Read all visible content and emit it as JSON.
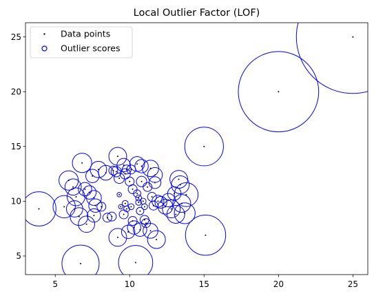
{
  "chart_data": {
    "type": "scatter",
    "title": "Local Outlier Factor (LOF)",
    "xlabel": "",
    "ylabel": "",
    "xlim": [
      3,
      26
    ],
    "ylim": [
      3.3,
      26.3
    ],
    "x_ticks": [
      5,
      10,
      15,
      20,
      25
    ],
    "y_ticks": [
      5,
      10,
      15,
      20,
      25
    ],
    "grid": false,
    "legend_position": "top-left",
    "colors": {
      "points": "#000000",
      "circles": "#0000ff",
      "axes": "#000000"
    },
    "series": [
      {
        "name": "Data points",
        "marker": "dot",
        "points": [
          [
            3.9,
            9.3
          ],
          [
            5.6,
            9.5
          ],
          [
            5.9,
            11.9
          ],
          [
            6.2,
            11.3
          ],
          [
            6.4,
            10.4
          ],
          [
            6.3,
            9.3
          ],
          [
            6.6,
            8.6
          ],
          [
            6.7,
            4.3
          ],
          [
            6.8,
            13.5
          ],
          [
            7.0,
            11.1
          ],
          [
            7.1,
            7.9
          ],
          [
            7.3,
            10.8
          ],
          [
            7.5,
            12.3
          ],
          [
            7.6,
            10.3
          ],
          [
            7.7,
            9.6
          ],
          [
            7.6,
            8.7
          ],
          [
            7.9,
            12.9
          ],
          [
            8.1,
            9.5
          ],
          [
            8.4,
            12.6
          ],
          [
            8.5,
            8.5
          ],
          [
            8.8,
            8.6
          ],
          [
            8.9,
            12.8
          ],
          [
            9.1,
            12.7
          ],
          [
            9.2,
            14.1
          ],
          [
            9.3,
            12.1
          ],
          [
            9.3,
            10.6
          ],
          [
            9.2,
            6.7
          ],
          [
            9.4,
            9.5
          ],
          [
            9.6,
            13.3
          ],
          [
            9.7,
            12.5
          ],
          [
            9.7,
            9.8
          ],
          [
            9.8,
            12.9
          ],
          [
            9.8,
            9.3
          ],
          [
            9.9,
            7.2
          ],
          [
            9.6,
            8.8
          ],
          [
            10.0,
            11.8
          ],
          [
            10.1,
            12.9
          ],
          [
            10.2,
            11.1
          ],
          [
            10.1,
            9.5
          ],
          [
            10.2,
            8.2
          ],
          [
            10.3,
            7.6
          ],
          [
            10.4,
            4.4
          ],
          [
            10.5,
            13.4
          ],
          [
            10.5,
            10.7
          ],
          [
            10.6,
            10.3
          ],
          [
            10.6,
            9.9
          ],
          [
            10.7,
            9.1
          ],
          [
            10.7,
            7.4
          ],
          [
            10.8,
            11.8
          ],
          [
            10.8,
            13.2
          ],
          [
            10.9,
            10.0
          ],
          [
            11.0,
            9.5
          ],
          [
            11.0,
            8.3
          ],
          [
            11.1,
            8.0
          ],
          [
            11.2,
            11.3
          ],
          [
            11.4,
            13.0
          ],
          [
            11.4,
            7.3
          ],
          [
            11.5,
            10.4
          ],
          [
            11.6,
            9.6
          ],
          [
            11.7,
            11.7
          ],
          [
            11.7,
            12.4
          ],
          [
            11.8,
            6.5
          ],
          [
            11.9,
            10.0
          ],
          [
            12.1,
            9.9
          ],
          [
            12.4,
            9.5
          ],
          [
            12.6,
            10.1
          ],
          [
            12.8,
            9.3
          ],
          [
            13.0,
            10.7
          ],
          [
            13.1,
            8.8
          ],
          [
            13.3,
            12.0
          ],
          [
            13.4,
            11.5
          ],
          [
            13.5,
            9.8
          ],
          [
            13.7,
            8.9
          ],
          [
            13.8,
            10.6
          ],
          [
            15.0,
            15.0
          ],
          [
            15.1,
            6.9
          ],
          [
            20.0,
            20.0
          ],
          [
            25.0,
            25.0
          ]
        ]
      },
      {
        "name": "Outlier scores",
        "marker": "circle",
        "points": [
          [
            3.9,
            9.3,
            1.15
          ],
          [
            5.6,
            9.5,
            0.75
          ],
          [
            5.9,
            11.9,
            0.65
          ],
          [
            6.2,
            11.3,
            0.55
          ],
          [
            6.4,
            10.4,
            0.6
          ],
          [
            6.3,
            9.3,
            0.55
          ],
          [
            6.6,
            8.6,
            0.6
          ],
          [
            6.7,
            4.3,
            1.25
          ],
          [
            6.8,
            13.5,
            0.65
          ],
          [
            7.0,
            11.1,
            0.45
          ],
          [
            7.1,
            7.9,
            0.55
          ],
          [
            7.3,
            10.8,
            0.45
          ],
          [
            7.5,
            12.3,
            0.45
          ],
          [
            7.6,
            10.3,
            0.5
          ],
          [
            7.7,
            9.6,
            0.45
          ],
          [
            7.6,
            8.7,
            0.45
          ],
          [
            7.9,
            12.9,
            0.55
          ],
          [
            8.1,
            9.5,
            0.3
          ],
          [
            8.4,
            12.6,
            0.5
          ],
          [
            8.5,
            8.5,
            0.3
          ],
          [
            8.8,
            8.6,
            0.3
          ],
          [
            8.9,
            12.8,
            0.3
          ],
          [
            9.1,
            12.7,
            0.35
          ],
          [
            9.2,
            14.1,
            0.6
          ],
          [
            9.3,
            12.1,
            0.35
          ],
          [
            9.3,
            10.6,
            0.15
          ],
          [
            9.2,
            6.7,
            0.6
          ],
          [
            9.4,
            9.5,
            0.15
          ],
          [
            9.6,
            13.3,
            0.45
          ],
          [
            9.7,
            12.5,
            0.35
          ],
          [
            9.7,
            9.8,
            0.2
          ],
          [
            9.8,
            12.9,
            0.3
          ],
          [
            9.8,
            9.3,
            0.2
          ],
          [
            9.9,
            7.2,
            0.45
          ],
          [
            9.6,
            8.8,
            0.3
          ],
          [
            10.0,
            11.8,
            0.3
          ],
          [
            10.1,
            12.9,
            0.3
          ],
          [
            10.2,
            11.1,
            0.3
          ],
          [
            10.1,
            9.5,
            0.2
          ],
          [
            10.2,
            8.2,
            0.3
          ],
          [
            10.3,
            7.6,
            0.45
          ],
          [
            10.4,
            4.4,
            1.15
          ],
          [
            10.5,
            13.4,
            0.5
          ],
          [
            10.5,
            10.7,
            0.25
          ],
          [
            10.6,
            10.3,
            0.2
          ],
          [
            10.6,
            9.9,
            0.2
          ],
          [
            10.7,
            9.1,
            0.25
          ],
          [
            10.7,
            7.4,
            0.45
          ],
          [
            10.8,
            11.8,
            0.35
          ],
          [
            10.8,
            13.2,
            0.45
          ],
          [
            10.9,
            10.0,
            0.2
          ],
          [
            11.0,
            9.5,
            0.2
          ],
          [
            11.0,
            8.3,
            0.3
          ],
          [
            11.1,
            8.0,
            0.3
          ],
          [
            11.2,
            11.3,
            0.3
          ],
          [
            11.4,
            13.0,
            0.55
          ],
          [
            11.4,
            7.3,
            0.5
          ],
          [
            11.5,
            10.4,
            0.3
          ],
          [
            11.6,
            9.6,
            0.3
          ],
          [
            11.7,
            11.7,
            0.4
          ],
          [
            11.7,
            12.4,
            0.5
          ],
          [
            11.8,
            6.5,
            0.6
          ],
          [
            11.9,
            10.0,
            0.4
          ],
          [
            12.1,
            9.9,
            0.4
          ],
          [
            12.4,
            9.5,
            0.5
          ],
          [
            12.6,
            10.1,
            0.45
          ],
          [
            12.8,
            9.3,
            0.6
          ],
          [
            13.0,
            10.7,
            0.45
          ],
          [
            13.1,
            8.8,
            0.6
          ],
          [
            13.3,
            12.0,
            0.6
          ],
          [
            13.4,
            11.5,
            0.6
          ],
          [
            13.5,
            9.8,
            0.6
          ],
          [
            13.7,
            8.9,
            0.7
          ],
          [
            13.8,
            10.6,
            0.8
          ],
          [
            15.0,
            15.0,
            1.3
          ],
          [
            15.1,
            6.9,
            1.35
          ],
          [
            20.0,
            20.0,
            2.7
          ],
          [
            25.0,
            25.0,
            3.8
          ]
        ]
      }
    ]
  }
}
